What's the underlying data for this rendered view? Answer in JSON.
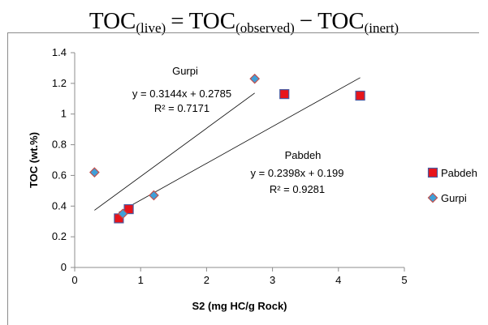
{
  "equation": {
    "lhs": "TOC",
    "lhs_sub": "(live)",
    "eq": "=",
    "t1": "TOC",
    "t1_sub": "(observed)",
    "minus": "−",
    "t2": "TOC",
    "t2_sub": "(inert)"
  },
  "chart_data": {
    "type": "scatter",
    "xlabel": "S2 (mg HC/g Rock)",
    "ylabel": "TOC (wt.%)",
    "xlim": [
      0,
      5
    ],
    "ylim": [
      0,
      1.4
    ],
    "x_ticks": [
      "0",
      "1",
      "2",
      "3",
      "4",
      "5"
    ],
    "y_ticks": [
      "0",
      "0.2",
      "0.4",
      "0.6",
      "0.8",
      "1",
      "1.2",
      "1.4"
    ],
    "grid": false,
    "legend_position": "right",
    "series": [
      {
        "name": "Pabdeh",
        "marker": "square",
        "color": "#e8141a",
        "edge_color": "#4a5aa0",
        "x": [
          0.67,
          0.82,
          3.18,
          4.33
        ],
        "y": [
          0.32,
          0.38,
          1.13,
          1.12
        ]
      },
      {
        "name": "Gurpi",
        "marker": "diamond",
        "color": "#3f9fd8",
        "edge_color": "#c0504d",
        "x": [
          0.3,
          0.73,
          1.2,
          2.73
        ],
        "y": [
          0.62,
          0.35,
          0.47,
          1.23
        ]
      }
    ],
    "trendlines": [
      {
        "series": "Gurpi",
        "slope": 0.3144,
        "intercept": 0.2785,
        "x_range": [
          0.3,
          2.73
        ],
        "color": "#000000",
        "labels": [
          "Gurpi",
          "y = 0.3144x + 0.2785",
          "R² = 0.7171"
        ]
      },
      {
        "series": "Pabdeh",
        "slope": 0.2398,
        "intercept": 0.199,
        "x_range": [
          0.67,
          4.33
        ],
        "color": "#000000",
        "labels": [
          "Pabdeh",
          "y = 0.2398x + 0.199",
          "R² = 0.9281"
        ]
      }
    ]
  }
}
